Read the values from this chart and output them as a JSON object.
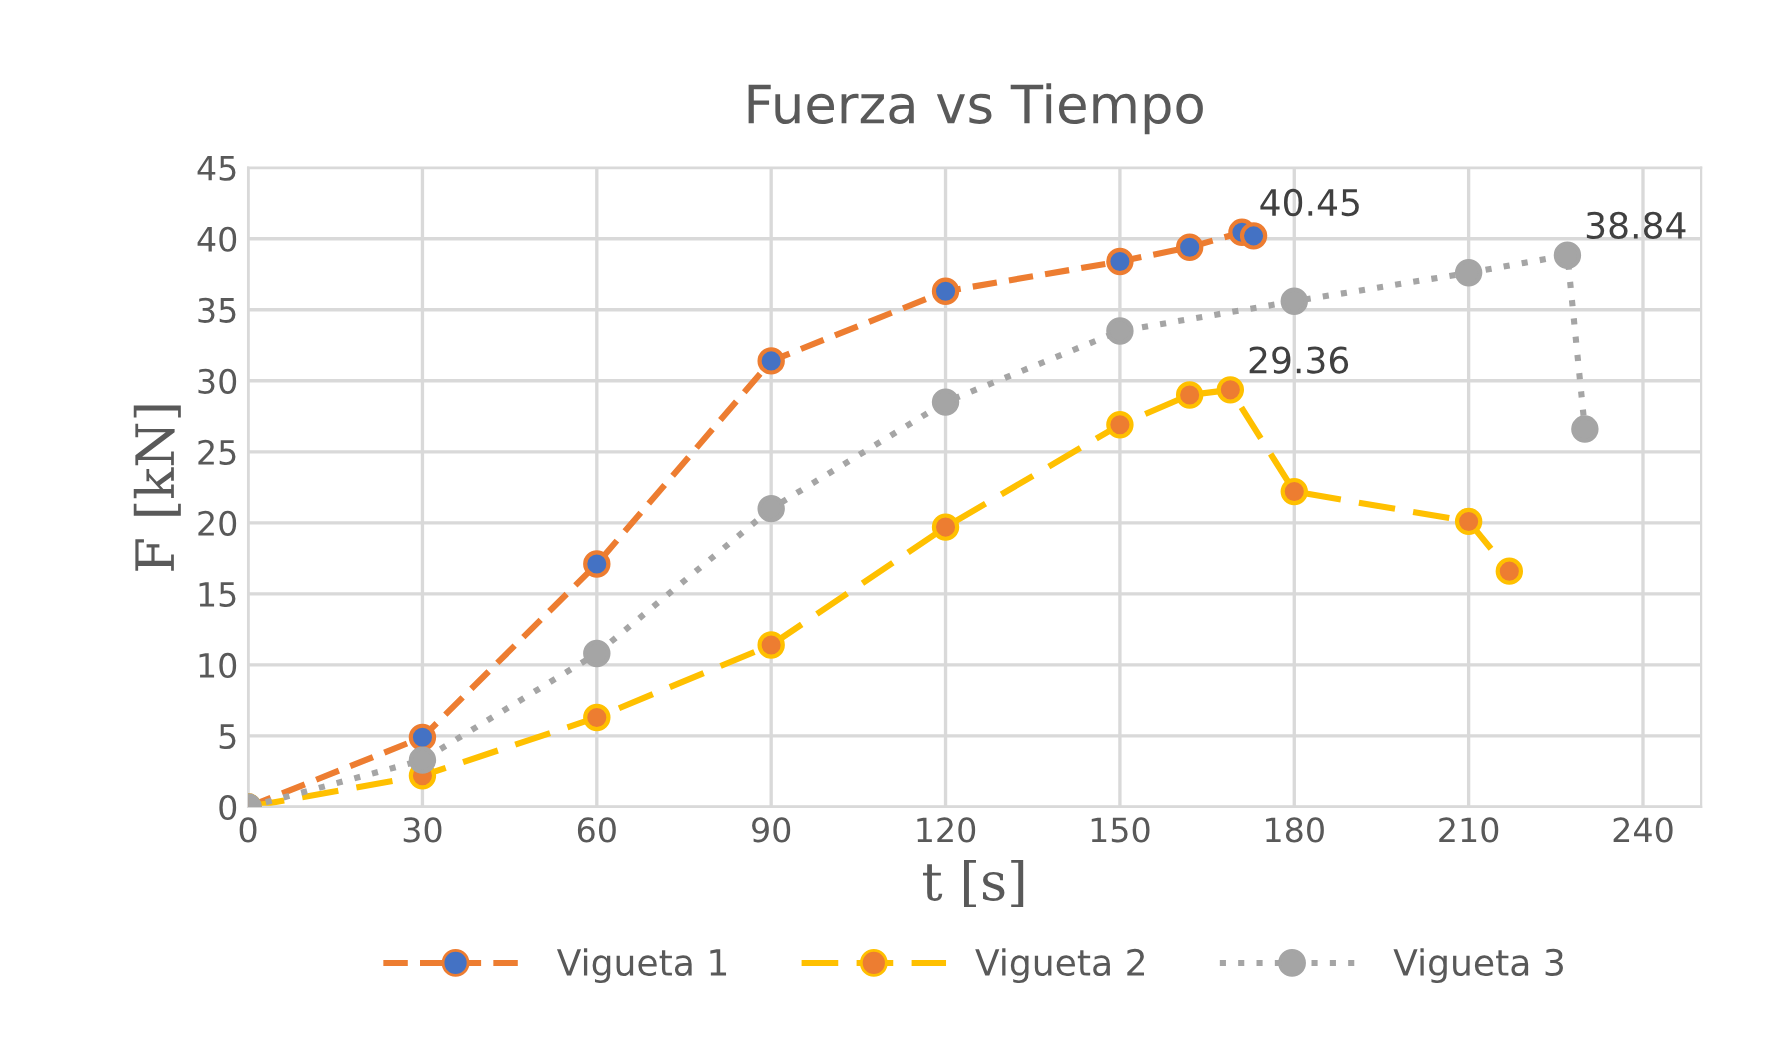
{
  "chart_data": {
    "type": "line",
    "title": "Fuerza vs Tiempo",
    "xlabel": "t [s]",
    "ylabel": "F [kN]",
    "xlim": [
      0,
      250
    ],
    "xticks": [
      0,
      30,
      60,
      90,
      120,
      150,
      180,
      210,
      240
    ],
    "ylim": [
      0,
      45
    ],
    "yticks": [
      0,
      5,
      10,
      15,
      20,
      25,
      30,
      35,
      40,
      45
    ],
    "grid": true,
    "legend": "bottom",
    "marker": "circle",
    "series": [
      {
        "name": "Vigueta 1",
        "color": "#ed7d31",
        "line_style": "dashed",
        "x": [
          0,
          30,
          60,
          90,
          120,
          150,
          162,
          171,
          173
        ],
        "values": [
          0,
          4.9,
          17.1,
          31.4,
          36.3,
          38.4,
          39.4,
          40.45,
          40.2
        ],
        "colors": [
          "#4472c4",
          "#4472c4",
          "#4472c4",
          "#4472c4",
          "#4472c4",
          "#4472c4",
          "#4472c4",
          "#4472c4",
          "#4472c4"
        ]
      },
      {
        "name": "Vigueta 2",
        "color": "#ffc000",
        "line_style": "dashed",
        "x": [
          0,
          30,
          60,
          90,
          120,
          150,
          162,
          169,
          180,
          210,
          217
        ],
        "values": [
          0,
          2.2,
          6.3,
          11.4,
          19.7,
          26.9,
          29.0,
          29.36,
          22.2,
          20.1,
          16.6
        ],
        "colors": [
          "#ed7d31",
          "#ed7d31",
          "#ed7d31",
          "#ed7d31",
          "#ed7d31",
          "#ed7d31",
          "#ed7d31",
          "#ed7d31",
          "#ed7d31",
          "#ed7d31",
          "#ed7d31"
        ]
      },
      {
        "name": "Vigueta 3",
        "color": "#a5a5a5",
        "line_style": "dotted",
        "x": [
          0,
          30,
          60,
          90,
          120,
          150,
          180,
          210,
          227,
          230
        ],
        "values": [
          0,
          3.3,
          10.8,
          21.0,
          28.5,
          33.5,
          35.6,
          37.6,
          38.84,
          26.6
        ],
        "colors": [
          "#a5a5a5",
          "#a5a5a5",
          "#a5a5a5",
          "#a5a5a5",
          "#a5a5a5",
          "#a5a5a5",
          "#a5a5a5",
          "#a5a5a5",
          "#a5a5a5",
          "#a5a5a5"
        ]
      }
    ],
    "annotations": [
      {
        "text": "40.45",
        "x": 171,
        "y": 40.45
      },
      {
        "text": "29.36",
        "x": 169,
        "y": 29.36
      },
      {
        "text": "38.84",
        "x": 227,
        "y": 38.84
      }
    ]
  }
}
